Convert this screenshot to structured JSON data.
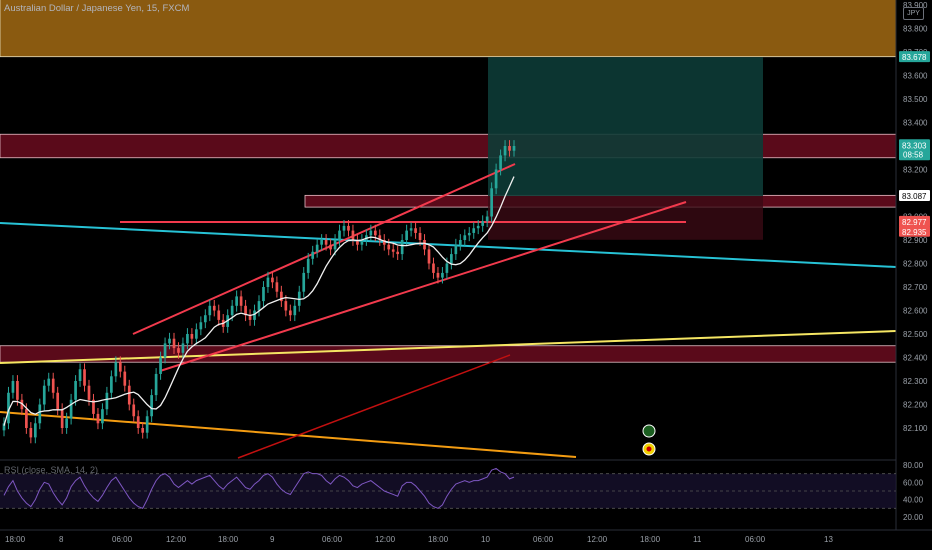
{
  "header": {
    "title": "Australian Dollar / Japanese Yen, 15, FXCM",
    "indicator_legend": "",
    "rsi_legend": "RSI (close, SMA, 14, 2)",
    "currency": "JPY"
  },
  "colors": {
    "background": "#000000",
    "candle_up": "#26a69a",
    "candle_down": "#ef5350",
    "supply_zone": "#8a5a10",
    "resistance_zone": "#5a0a1a",
    "target_box": "#0d3b36",
    "channel_line": "#f23a4d",
    "teal_line": "#27c3d6",
    "yellow_line": "#f5e663",
    "orange_line": "#f39c12",
    "red_ma": "#c21010",
    "white_ma": "#f0f0f0",
    "rsi_line": "#7e57c2"
  },
  "chart_data": {
    "type": "candlestick",
    "instrument": "Australian Dollar / Japanese Yen",
    "interval": "15",
    "source": "FXCM",
    "ylim": [
      82.0,
      83.9
    ],
    "y_ticks": [
      "83.900",
      "83.800",
      "83.700",
      "83.600",
      "83.500",
      "83.400",
      "83.300",
      "83.200",
      "83.100",
      "83.000",
      "82.900",
      "82.800",
      "82.700",
      "82.600",
      "82.500",
      "82.400",
      "82.300",
      "82.200",
      "82.100"
    ],
    "x_ticks": [
      "18:00",
      "8",
      "06:00",
      "12:00",
      "18:00",
      "9",
      "06:00",
      "12:00",
      "18:00",
      "10",
      "06:00",
      "12:00",
      "18:00",
      "11",
      "06:00",
      "13"
    ],
    "price_labels": [
      {
        "text": "83.678",
        "value": 83.678,
        "color": "#26a69a"
      },
      {
        "text": "83.303",
        "sub": "08:58",
        "value": 83.303,
        "color": "#26a69a"
      },
      {
        "text": "83.087",
        "value": 83.087,
        "color": "#ffffff"
      },
      {
        "text": "82.977",
        "value": 82.977,
        "color": "#ef5350"
      },
      {
        "text": "82.935",
        "value": 82.935,
        "color": "#ef5350"
      }
    ],
    "zones": [
      {
        "name": "supply",
        "from": 83.68,
        "to": 83.98
      },
      {
        "name": "resistance",
        "from": 83.25,
        "to": 83.35
      },
      {
        "name": "support",
        "from": 82.38,
        "to": 82.45
      },
      {
        "name": "entry",
        "from": 83.04,
        "to": 83.09
      }
    ],
    "position": {
      "target": 83.678,
      "entry": 83.087,
      "stop": 82.935
    },
    "close_series": [
      82.12,
      82.25,
      82.3,
      82.22,
      82.18,
      82.1,
      82.06,
      82.12,
      82.2,
      82.28,
      82.31,
      82.25,
      82.18,
      82.1,
      82.14,
      82.22,
      82.3,
      82.35,
      82.28,
      82.22,
      82.16,
      82.12,
      82.18,
      82.25,
      82.32,
      82.38,
      82.34,
      82.28,
      82.2,
      82.15,
      82.1,
      82.08,
      82.15,
      82.24,
      82.33,
      82.4,
      82.46,
      82.48,
      82.44,
      82.42,
      82.46,
      82.5,
      82.48,
      82.52,
      82.55,
      82.58,
      82.62,
      82.6,
      82.56,
      82.53,
      82.58,
      82.62,
      82.66,
      82.62,
      82.58,
      82.56,
      82.6,
      82.64,
      82.7,
      82.74,
      82.72,
      82.68,
      82.64,
      82.6,
      82.58,
      82.62,
      82.68,
      82.76,
      82.82,
      82.85,
      82.88,
      82.9,
      82.88,
      82.86,
      82.9,
      82.94,
      82.96,
      82.94,
      82.9,
      82.88,
      82.9,
      82.92,
      82.94,
      82.92,
      82.9,
      82.88,
      82.86,
      82.85,
      82.84,
      82.9,
      82.94,
      82.95,
      82.93,
      82.9,
      82.86,
      82.8,
      82.76,
      82.74,
      82.76,
      82.8,
      82.84,
      82.88,
      82.9,
      82.92,
      82.93,
      82.95,
      82.96,
      82.98,
      83.0,
      83.12,
      83.2,
      83.26,
      83.3,
      83.28,
      83.3
    ],
    "rsi": {
      "ylim": [
        20,
        80
      ],
      "y_ticks": [
        "80.00",
        "60.00",
        "40.00",
        "20.00"
      ],
      "values": [
        45,
        55,
        62,
        50,
        42,
        36,
        32,
        40,
        52,
        60,
        58,
        48,
        40,
        34,
        42,
        55,
        62,
        66,
        56,
        48,
        42,
        38,
        45,
        54,
        62,
        66,
        58,
        50,
        42,
        36,
        32,
        30,
        40,
        52,
        62,
        68,
        70,
        66,
        58,
        54,
        58,
        62,
        58,
        62,
        64,
        66,
        68,
        62,
        56,
        52,
        58,
        62,
        66,
        60,
        54,
        52,
        58,
        62,
        68,
        70,
        66,
        58,
        52,
        48,
        46,
        54,
        62,
        70,
        72,
        70,
        70,
        68,
        62,
        58,
        64,
        68,
        66,
        62,
        56,
        54,
        58,
        60,
        62,
        58,
        54,
        50,
        48,
        46,
        44,
        56,
        60,
        60,
        56,
        50,
        44,
        36,
        32,
        30,
        34,
        44,
        52,
        58,
        60,
        62,
        60,
        62,
        62,
        64,
        66,
        74,
        76,
        72,
        70,
        64,
        66
      ]
    }
  }
}
